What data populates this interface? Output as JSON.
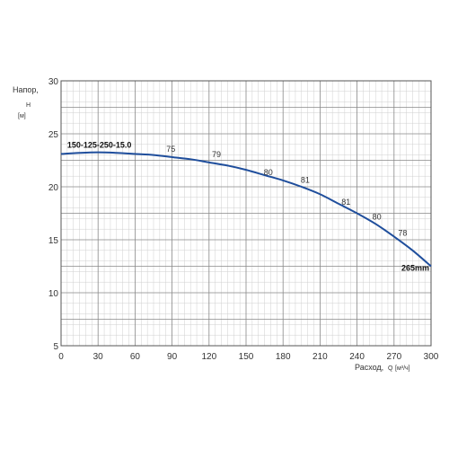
{
  "chart_data": {
    "type": "line",
    "ylabel": {
      "line1": "Напор,",
      "symbol": "H",
      "unit": "[м]"
    },
    "xlabel": {
      "text": "Расход,",
      "symbol": "Q",
      "unit": "[м³/ч]"
    },
    "xlim": [
      0,
      300
    ],
    "ylim": [
      5,
      30
    ],
    "xticks": [
      0,
      30,
      60,
      90,
      120,
      150,
      180,
      210,
      240,
      270,
      300
    ],
    "yticks": [
      5,
      10,
      15,
      20,
      25,
      30
    ],
    "grid": true,
    "colors": {
      "curve": "#1f4e9c",
      "grid": "#888888",
      "border": "#555555"
    },
    "series": [
      {
        "name": "150-125-250-15.0",
        "end_label": "265mm",
        "x": [
          0,
          15,
          30,
          45,
          60,
          75,
          90,
          105,
          120,
          135,
          150,
          165,
          180,
          195,
          210,
          225,
          240,
          255,
          270,
          285,
          300
        ],
        "y": [
          23.1,
          23.2,
          23.25,
          23.2,
          23.1,
          23.0,
          22.8,
          22.6,
          22.3,
          22.0,
          21.6,
          21.1,
          20.6,
          20.0,
          19.3,
          18.4,
          17.5,
          16.5,
          15.3,
          14.0,
          12.5
        ]
      }
    ],
    "efficiency_labels": [
      {
        "text": "75",
        "x": 89,
        "y": 23.3
      },
      {
        "text": "79",
        "x": 126,
        "y": 22.8
      },
      {
        "text": "80",
        "x": 168,
        "y": 21.1
      },
      {
        "text": "81",
        "x": 198,
        "y": 20.4
      },
      {
        "text": "81",
        "x": 231,
        "y": 18.3
      },
      {
        "text": "80",
        "x": 256,
        "y": 16.9
      },
      {
        "text": "78",
        "x": 277,
        "y": 15.4
      }
    ]
  }
}
